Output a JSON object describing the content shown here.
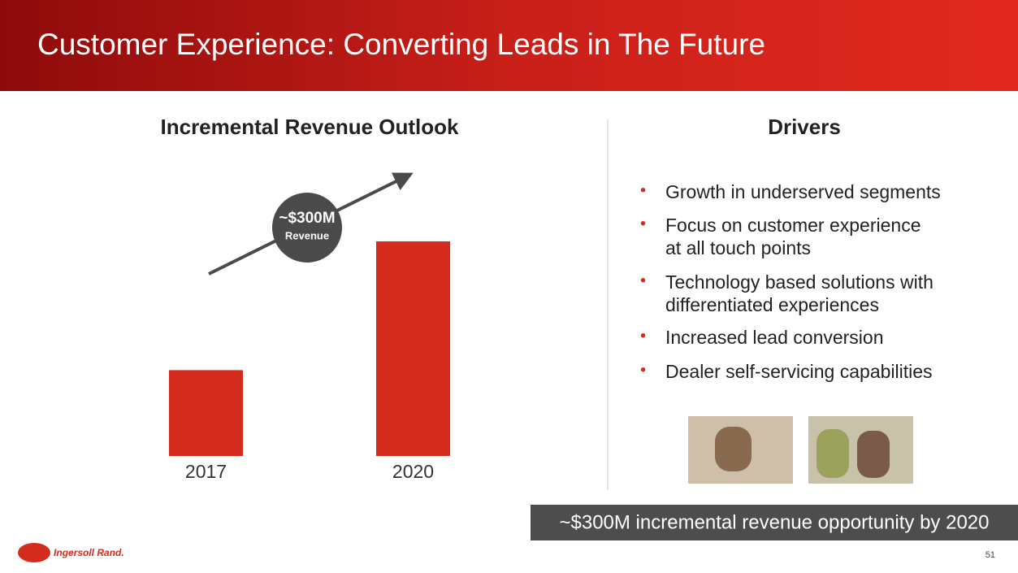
{
  "header": {
    "title": "Customer Experience: Converting Leads in The Future"
  },
  "chart_data": {
    "type": "bar",
    "title": "Incremental Revenue Outlook",
    "categories": [
      "2017",
      "2020"
    ],
    "values": [
      200,
      500
    ],
    "color": "#d52b1e",
    "annotation": {
      "value": "~$300M",
      "label": "Revenue"
    }
  },
  "drivers": {
    "title": "Drivers",
    "items": [
      [
        "Growth in underserved segments"
      ],
      [
        "Focus on customer experience",
        "at all touch points"
      ],
      [
        "Technology based solutions with",
        "differentiated experiences"
      ],
      [
        "Increased lead conversion"
      ],
      [
        "Dealer self-servicing capabilities"
      ]
    ]
  },
  "callout": "~$300M incremental revenue opportunity by 2020",
  "footer": {
    "logo": "Ingersoll Rand.",
    "page": "51"
  }
}
